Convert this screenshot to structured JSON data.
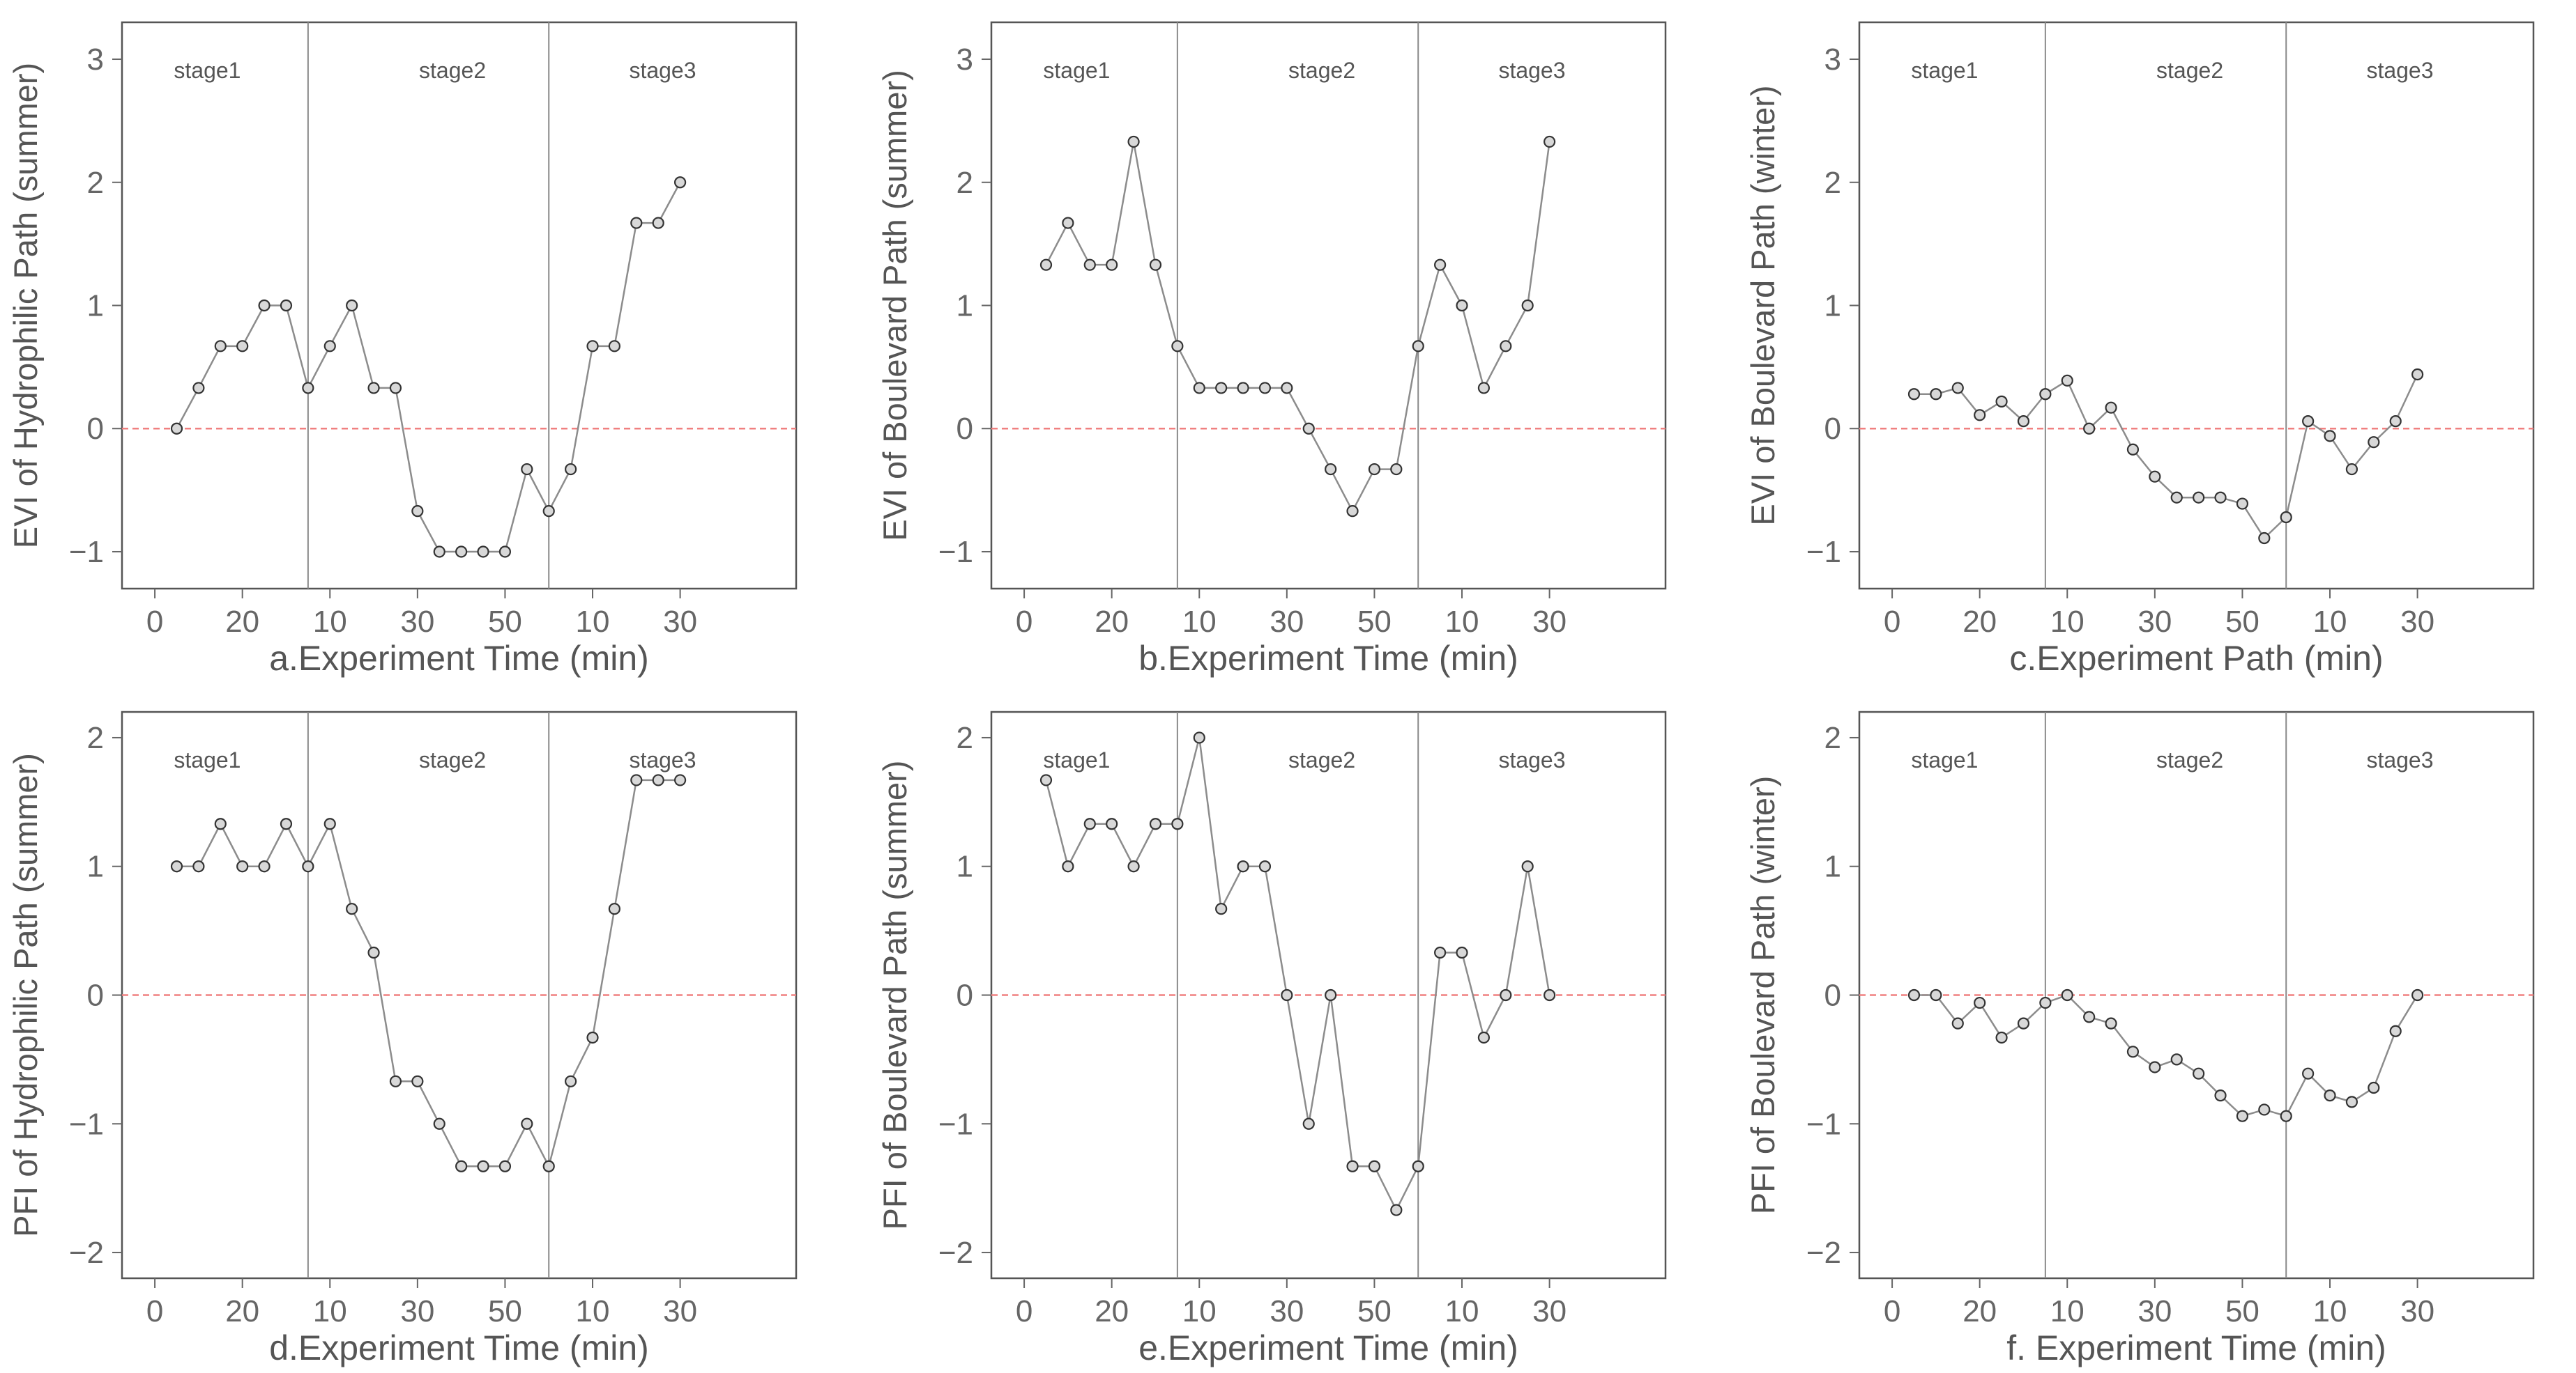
{
  "chart_data": [
    {
      "type": "line",
      "xlabel": "a.Experiment Time (min)",
      "ylabel": "EVI of Hydrophilic Path (summer)",
      "ylim": [
        -1.3,
        3.3
      ],
      "yticks": [
        "−1",
        "0",
        "1",
        "2",
        "3"
      ],
      "yticks_values": [
        -1,
        0,
        1,
        2,
        3
      ],
      "xticks": [
        "0",
        "20",
        "10",
        "30",
        "50",
        "10",
        "30"
      ],
      "stages": [
        "stage1",
        "stage2",
        "stage3"
      ],
      "reference_line": 0,
      "values": [
        0,
        0.33,
        0.67,
        0.67,
        1,
        1,
        0.33,
        0.67,
        1,
        0.33,
        0.33,
        -0.67,
        -1,
        -1,
        -1,
        -1,
        -0.33,
        -0.67,
        -0.33,
        0.67,
        0.67,
        1.67,
        1.67,
        2
      ]
    },
    {
      "type": "line",
      "xlabel": "b.Experiment Time (min)",
      "ylabel": "EVI of Boulevard Path (summer)",
      "ylim": [
        -1.3,
        3.3
      ],
      "yticks": [
        "−1",
        "0",
        "1",
        "2",
        "3"
      ],
      "yticks_values": [
        -1,
        0,
        1,
        2,
        3
      ],
      "xticks": [
        "0",
        "20",
        "10",
        "30",
        "50",
        "10",
        "30"
      ],
      "stages": [
        "stage1",
        "stage2",
        "stage3"
      ],
      "reference_line": 0,
      "values": [
        1.33,
        1.67,
        1.33,
        1.33,
        2.33,
        1.33,
        0.67,
        0.33,
        0.33,
        0.33,
        0.33,
        0.33,
        0,
        -0.33,
        -0.67,
        -0.33,
        -0.33,
        0.67,
        1.33,
        1,
        0.33,
        0.67,
        1,
        2.33
      ]
    },
    {
      "type": "line",
      "xlabel": "c.Experiment Path (min)",
      "ylabel": "EVI of Boulevard Path (winter)",
      "ylim": [
        -1.3,
        3.3
      ],
      "yticks": [
        "−1",
        "0",
        "1",
        "2",
        "3"
      ],
      "yticks_values": [
        -1,
        0,
        1,
        2,
        3
      ],
      "xticks": [
        "0",
        "20",
        "10",
        "30",
        "50",
        "10",
        "30"
      ],
      "stages": [
        "stage1",
        "stage2",
        "stage3"
      ],
      "reference_line": 0,
      "values": [
        0.28,
        0.28,
        0.33,
        0.11,
        0.22,
        0.06,
        0.28,
        0.39,
        0,
        0.17,
        -0.17,
        -0.39,
        -0.56,
        -0.56,
        -0.56,
        -0.61,
        -0.89,
        -0.72,
        0.06,
        -0.06,
        -0.33,
        -0.11,
        0.06,
        0.44
      ]
    },
    {
      "type": "line",
      "xlabel": "d.Experiment Time (min)",
      "ylabel": "PFI of Hydrophilic Path (summer)",
      "ylim": [
        -2.2,
        2.2
      ],
      "yticks": [
        "−2",
        "−1",
        "0",
        "1",
        "2"
      ],
      "yticks_values": [
        -2,
        -1,
        0,
        1,
        2
      ],
      "xticks": [
        "0",
        "20",
        "10",
        "30",
        "50",
        "10",
        "30"
      ],
      "stages": [
        "stage1",
        "stage2",
        "stage3"
      ],
      "reference_line": 0,
      "values": [
        1,
        1,
        1.33,
        1,
        1,
        1.33,
        1,
        1.33,
        0.67,
        0.33,
        -0.67,
        -0.67,
        -1,
        -1.33,
        -1.33,
        -1.33,
        -1,
        -1.33,
        -0.67,
        -0.33,
        0.67,
        1.67,
        1.67,
        1.67
      ]
    },
    {
      "type": "line",
      "xlabel": "e.Experiment Time (min)",
      "ylabel": "PFI of Boulevard Path (summer)",
      "ylim": [
        -2.2,
        2.2
      ],
      "yticks": [
        "−2",
        "−1",
        "0",
        "1",
        "2"
      ],
      "yticks_values": [
        -2,
        -1,
        0,
        1,
        2
      ],
      "xticks": [
        "0",
        "20",
        "10",
        "30",
        "50",
        "10",
        "30"
      ],
      "stages": [
        "stage1",
        "stage2",
        "stage3"
      ],
      "reference_line": 0,
      "values": [
        1.67,
        1,
        1.33,
        1.33,
        1,
        1.33,
        1.33,
        2,
        0.67,
        1,
        1,
        0,
        -1,
        0,
        -1.33,
        -1.33,
        -1.67,
        -1.33,
        0.33,
        0.33,
        -0.33,
        0,
        1,
        0
      ]
    },
    {
      "type": "line",
      "xlabel": "f. Experiment Time (min)",
      "ylabel": "PFI of Boulevard Path (winter)",
      "ylim": [
        -2.2,
        2.2
      ],
      "yticks": [
        "−2",
        "−1",
        "0",
        "1",
        "2"
      ],
      "yticks_values": [
        -2,
        -1,
        0,
        1,
        2
      ],
      "xticks": [
        "0",
        "20",
        "10",
        "30",
        "50",
        "10",
        "30"
      ],
      "stages": [
        "stage1",
        "stage2",
        "stage3"
      ],
      "reference_line": 0,
      "values": [
        0,
        0,
        -0.22,
        -0.06,
        -0.33,
        -0.22,
        -0.06,
        0,
        -0.17,
        -0.22,
        -0.44,
        -0.56,
        -0.5,
        -0.61,
        -0.78,
        -0.94,
        -0.89,
        -0.94,
        -0.61,
        -0.78,
        -0.83,
        -0.72,
        -0.28,
        0
      ]
    }
  ]
}
